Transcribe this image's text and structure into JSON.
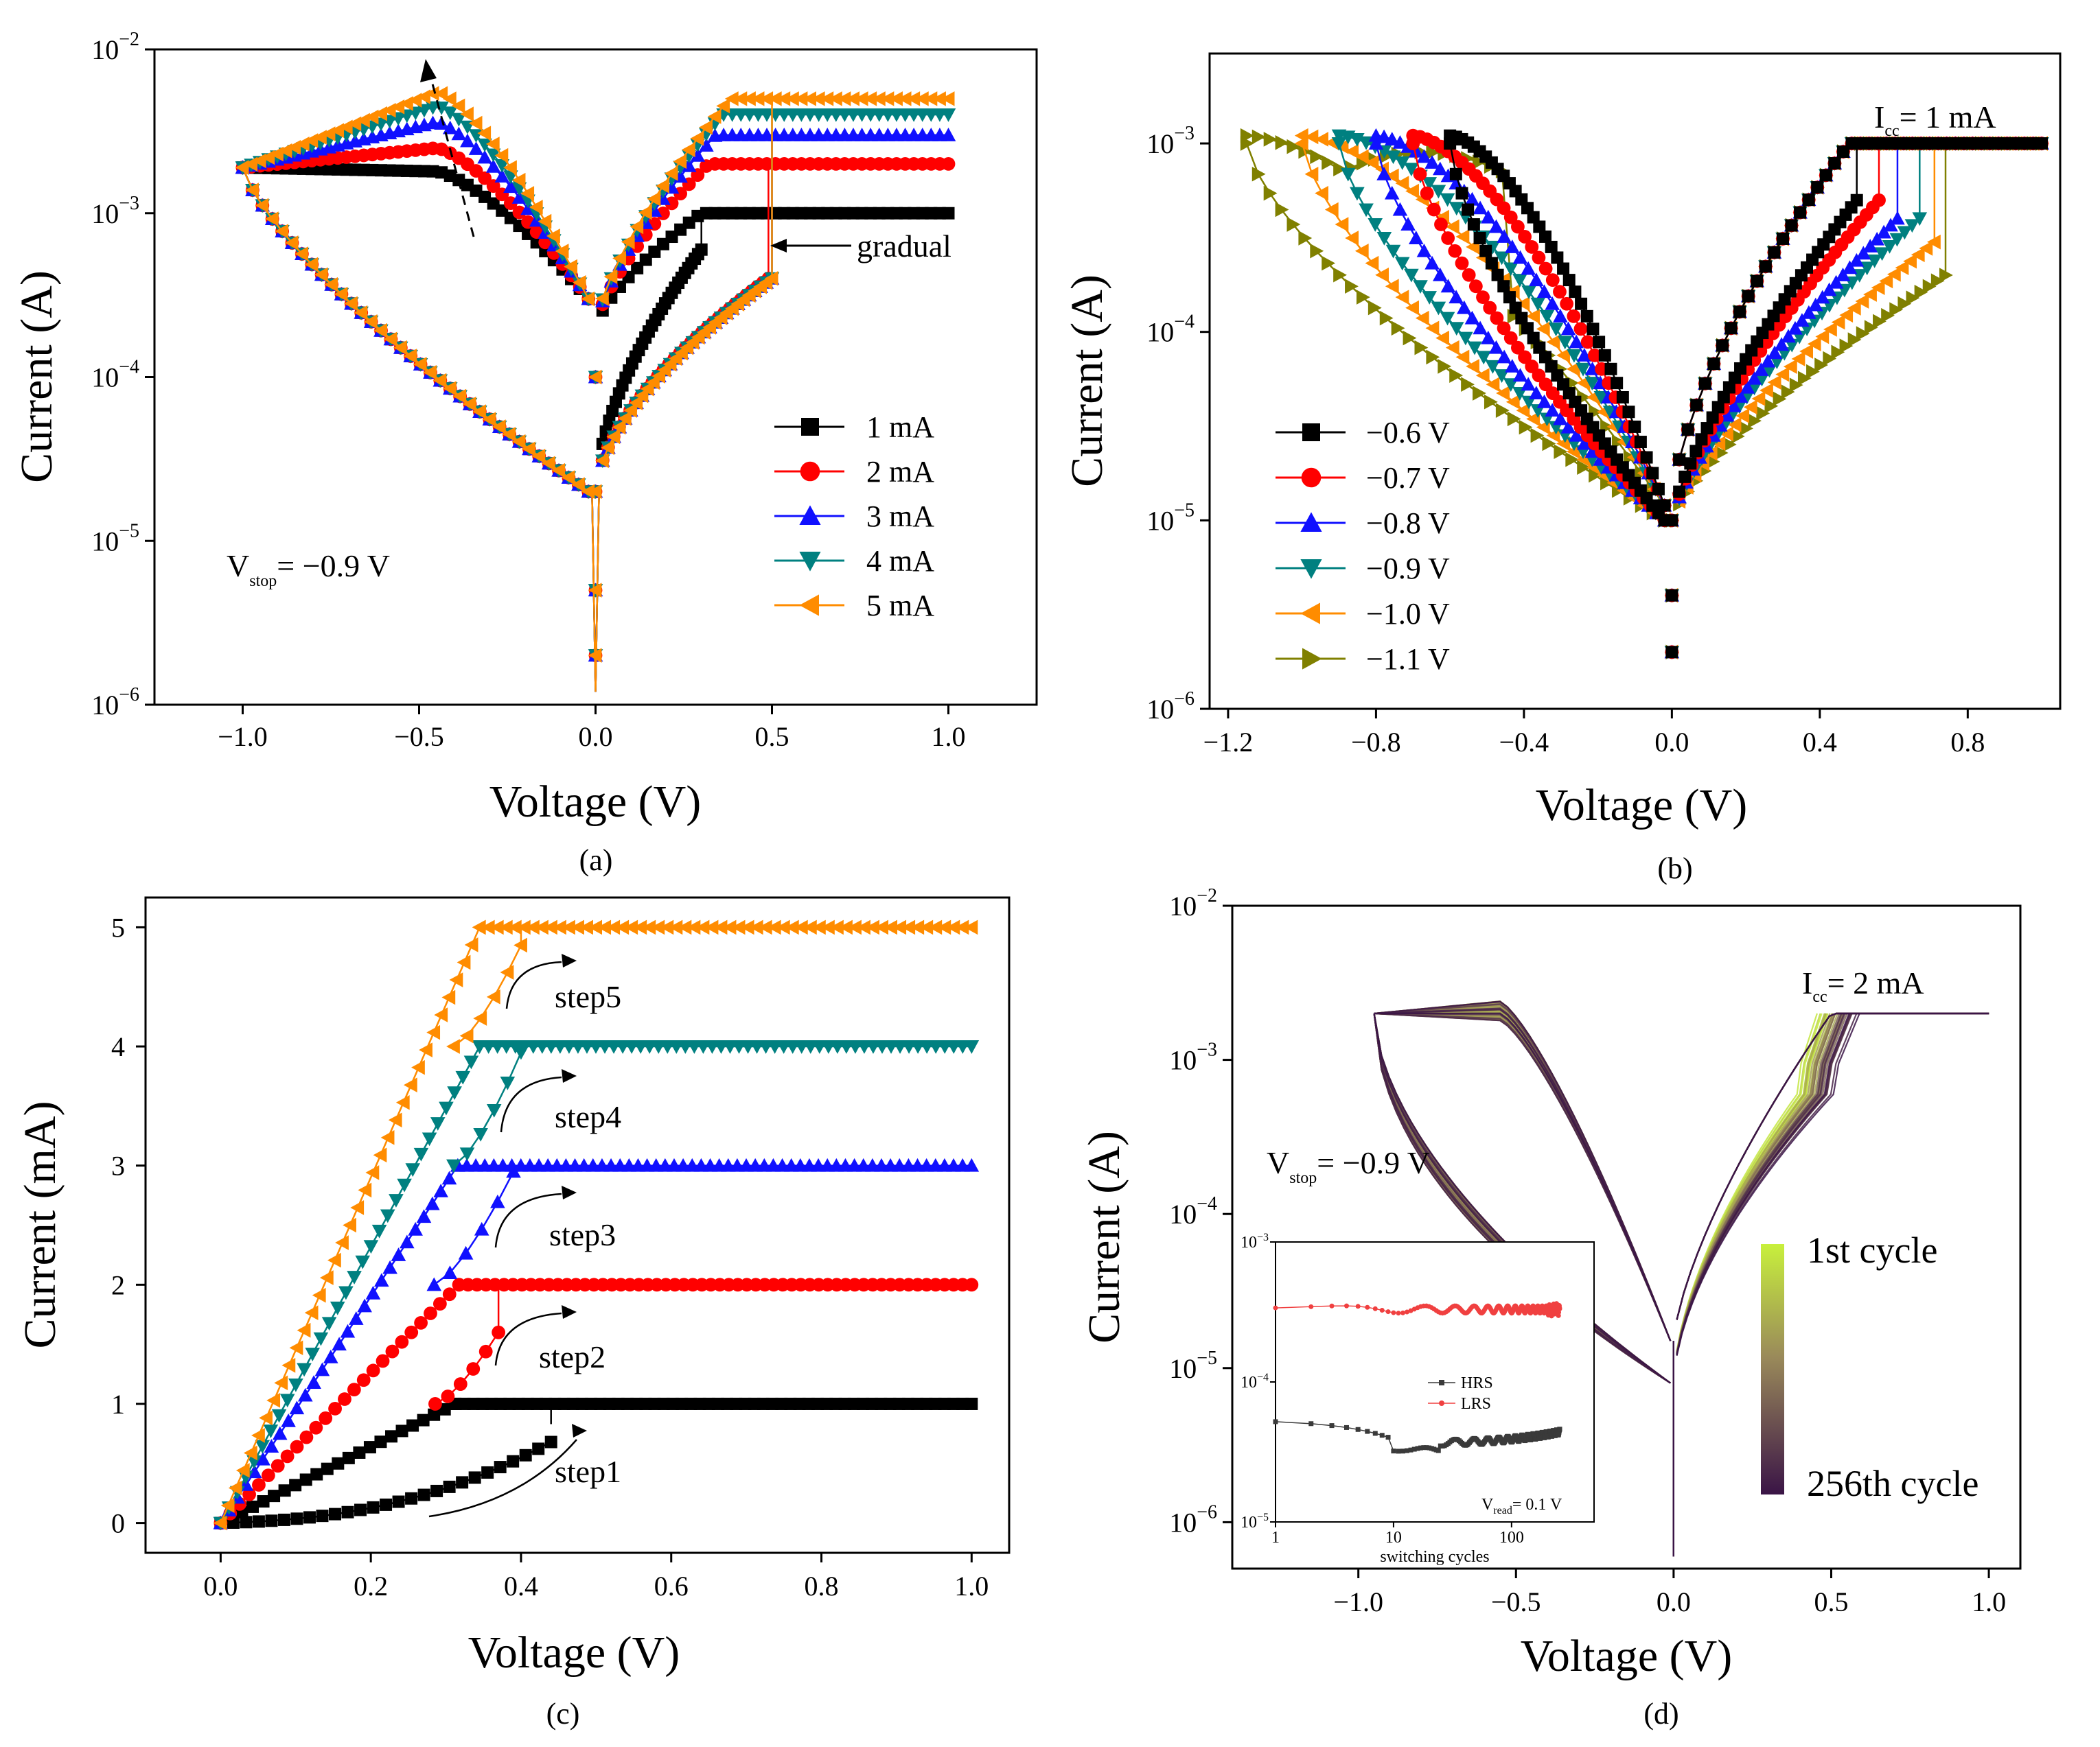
{
  "figure": {
    "captions": [
      "(a)",
      "(b)",
      "(c)",
      "(d)"
    ]
  },
  "colors": {
    "black": "#000000",
    "red": "#ff0000",
    "blue": "#1010ff",
    "teal": "#008080",
    "orange": "#ff8c00",
    "olive": "#808000",
    "cycle_first": "#c8f03c",
    "cycle_last": "#3a1446",
    "inset_hrs": "#3a3a3a",
    "inset_lrs": "#f04040"
  },
  "chart_data": [
    {
      "id": "a",
      "type": "line",
      "yscale": "log",
      "xlabel": "Voltage (V)",
      "ylabel": "Current (A)",
      "xlim": [
        -1.25,
        1.25
      ],
      "ylim": [
        1e-06,
        0.01
      ],
      "xticks": [
        -1.0,
        -0.5,
        0.0,
        0.5,
        1.0
      ],
      "xtick_labels": [
        "−1.0",
        "−0.5",
        "0.0",
        "0.5",
        "1.0"
      ],
      "ytick_exponents": [
        -2,
        -3,
        -4,
        -5,
        -6
      ],
      "annotations": {
        "vstop_prefix": "V",
        "vstop_sub": "stop",
        "vstop_value": "= −0.9 V",
        "arrow_label": "gradual"
      },
      "series": [
        {
          "name": "1 mA",
          "compliance": 0.001,
          "set_voltage": 0.3,
          "reset_peak": 0.0018,
          "marker": "square",
          "color": "#000000"
        },
        {
          "name": "2 mA",
          "compliance": 0.002,
          "set_voltage": 0.49,
          "reset_peak": 0.0025,
          "marker": "circle",
          "color": "#ff0000"
        },
        {
          "name": "3 mA",
          "compliance": 0.003,
          "set_voltage": 0.5,
          "reset_peak": 0.0036,
          "marker": "triangle-up",
          "color": "#1010ff"
        },
        {
          "name": "4 mA",
          "compliance": 0.004,
          "set_voltage": 0.5,
          "reset_peak": 0.0045,
          "marker": "triangle-down",
          "color": "#008080"
        },
        {
          "name": "5 mA",
          "compliance": 0.005,
          "set_voltage": 0.5,
          "reset_peak": 0.0055,
          "marker": "triangle-left",
          "color": "#ff8c00"
        }
      ]
    },
    {
      "id": "b",
      "type": "line",
      "yscale": "log",
      "xlabel": "Voltage (V)",
      "ylabel": "Current (A)",
      "xlim": [
        -1.25,
        1.05
      ],
      "ylim": [
        1e-06,
        0.003
      ],
      "xticks": [
        -1.2,
        -0.8,
        -0.4,
        0.0,
        0.4,
        0.8
      ],
      "xtick_labels": [
        "−1.2",
        "−0.8",
        "−0.4",
        "0.0",
        "0.4",
        "0.8"
      ],
      "ytick_exponents": [
        -3,
        -4,
        -5,
        -6
      ],
      "annotations": {
        "icc_prefix": "I",
        "icc_sub": "cc",
        "icc_value": "= 1 mA"
      },
      "series": [
        {
          "name": "−0.6 V",
          "vstop": -0.6,
          "set_voltage": 0.5,
          "marker": "square",
          "color": "#000000"
        },
        {
          "name": "−0.7 V",
          "vstop": -0.7,
          "set_voltage": 0.56,
          "marker": "circle",
          "color": "#ff0000"
        },
        {
          "name": "−0.8 V",
          "vstop": -0.8,
          "set_voltage": 0.61,
          "marker": "triangle-up",
          "color": "#1010ff"
        },
        {
          "name": "−0.9 V",
          "vstop": -0.9,
          "set_voltage": 0.67,
          "marker": "triangle-down",
          "color": "#008080"
        },
        {
          "name": "−1.0 V",
          "vstop": -1.0,
          "set_voltage": 0.71,
          "marker": "triangle-left",
          "color": "#ff8c00"
        },
        {
          "name": "−1.1 V",
          "vstop": -1.15,
          "set_voltage": 0.74,
          "marker": "triangle-right",
          "color": "#808000"
        }
      ]
    },
    {
      "id": "c",
      "type": "line",
      "yscale": "linear",
      "xlabel": "Voltage (V)",
      "ylabel": "Current (mA)",
      "xlim": [
        -0.1,
        1.05
      ],
      "ylim": [
        -0.25,
        5.25
      ],
      "xticks": [
        0.0,
        0.2,
        0.4,
        0.6,
        0.8,
        1.0
      ],
      "xtick_labels": [
        "0.0",
        "0.2",
        "0.4",
        "0.6",
        "0.8",
        "1.0"
      ],
      "yticks": [
        0,
        1,
        2,
        3,
        4,
        5
      ],
      "ytick_labels": [
        "0",
        "1",
        "2",
        "3",
        "4",
        "5"
      ],
      "series": [
        {
          "name": "step1",
          "compliance": 1,
          "set_voltage": 0.44,
          "jump_from": 0.83,
          "marker": "square",
          "color": "#000000"
        },
        {
          "name": "step2",
          "compliance": 2,
          "set_voltage": 0.37,
          "jump_from": 1.6,
          "marker": "circle",
          "color": "#ff0000"
        },
        {
          "name": "step3",
          "compliance": 3,
          "set_voltage": 0.39,
          "jump_from": 2.95,
          "marker": "triangle-up",
          "color": "#1010ff"
        },
        {
          "name": "step4",
          "compliance": 4,
          "set_voltage": 0.4,
          "jump_from": 3.95,
          "marker": "triangle-down",
          "color": "#008080"
        },
        {
          "name": "step5",
          "compliance": 5,
          "set_voltage": 0.4,
          "jump_from": 4.85,
          "marker": "triangle-left",
          "color": "#ff8c00"
        }
      ]
    },
    {
      "id": "d",
      "type": "line",
      "yscale": "log",
      "xlabel": "Voltage (V)",
      "ylabel": "Current (A)",
      "xlim": [
        -1.4,
        1.1
      ],
      "ylim": [
        5e-07,
        0.01
      ],
      "xticks": [
        -1.0,
        -0.5,
        0.0,
        0.5,
        1.0
      ],
      "xtick_labels": [
        "−1.0",
        "−0.5",
        "0.0",
        "0.5",
        "1.0"
      ],
      "ytick_exponents": [
        -2,
        -3,
        -4,
        -5,
        -6
      ],
      "cycles": 256,
      "compliance": 0.002,
      "annotations": {
        "icc_prefix": "I",
        "icc_sub": "cc",
        "icc_value": "= 2 mA",
        "vstop_prefix": "V",
        "vstop_sub": "stop",
        "vstop_value": "= −0.9 V",
        "colorbar_top": "1st cycle",
        "colorbar_bottom": "256th cycle"
      },
      "inset": {
        "xlabel": "switching cycles",
        "xscale": "log",
        "yscale": "log",
        "xlim": [
          1,
          500
        ],
        "ylim": [
          1e-05,
          0.001
        ],
        "xtick_labels": [
          "1",
          "10",
          "100"
        ],
        "ytick_exponents": [
          -3,
          -4,
          -5
        ],
        "legend": [
          "HRS",
          "LRS"
        ],
        "vread_prefix": "V",
        "vread_sub": "read",
        "vread_value": "= 0.1 V",
        "lrs_level": 0.00033,
        "hrs_level": 4e-05
      }
    }
  ]
}
